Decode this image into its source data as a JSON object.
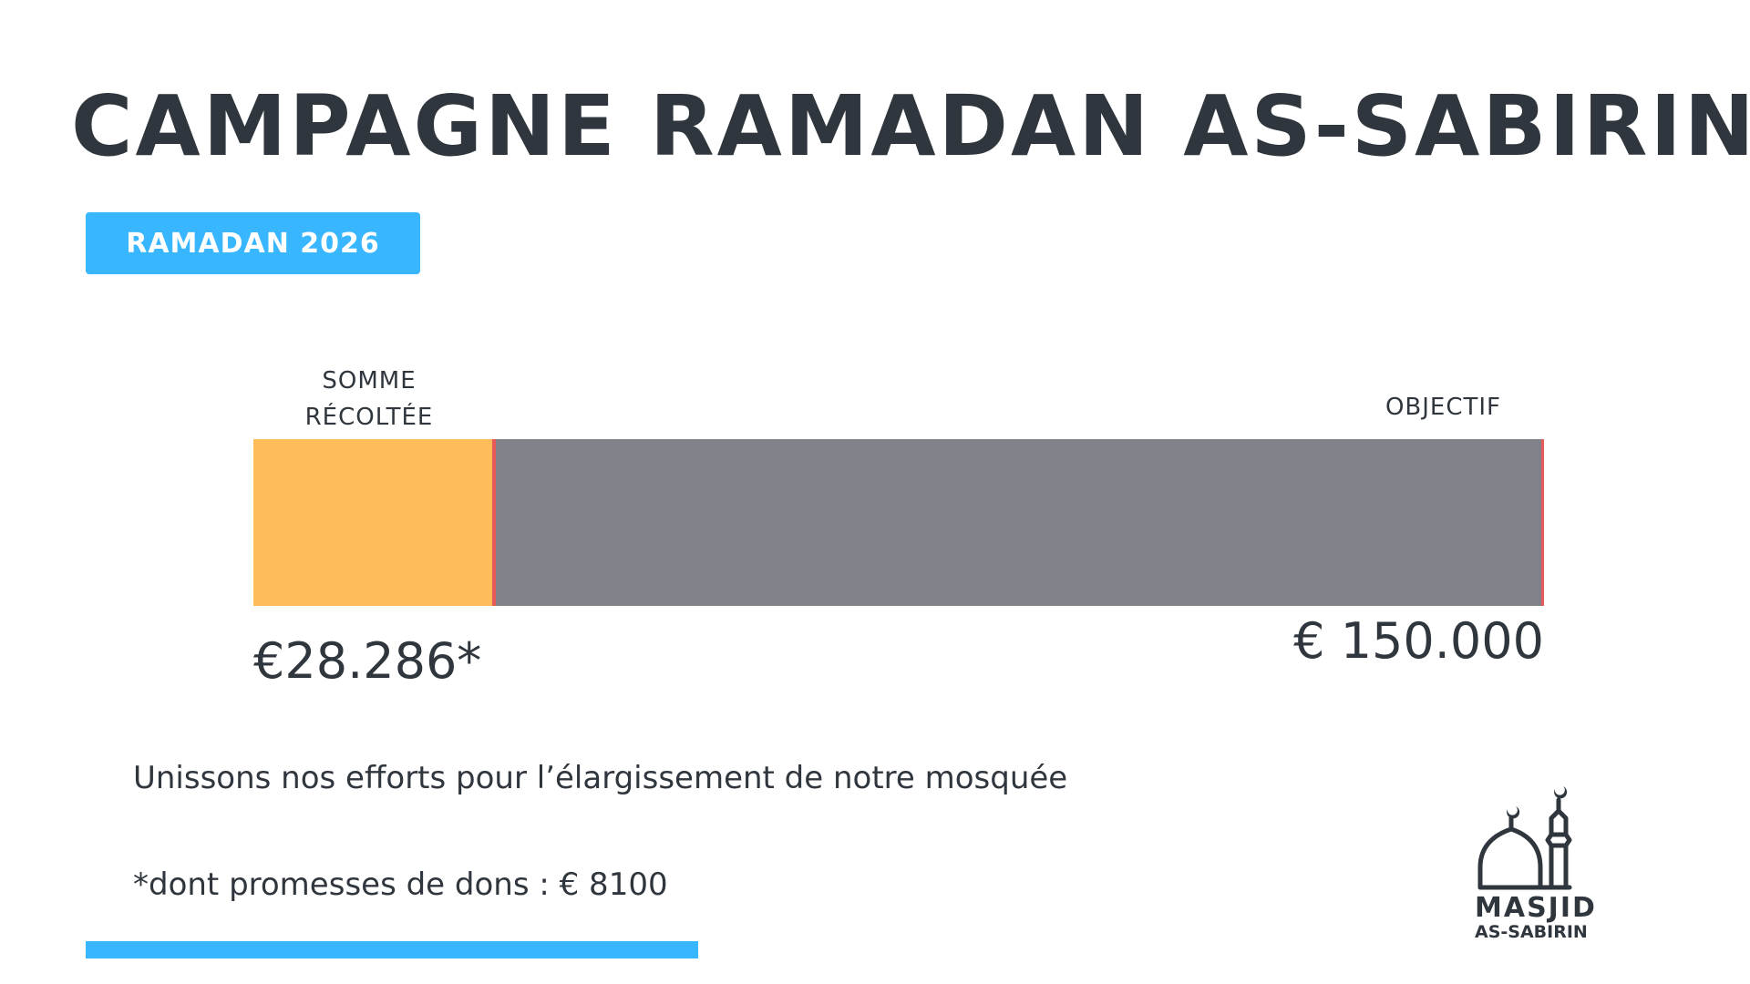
{
  "header": {
    "title": "CAMPAGNE RAMADAN AS-SABIRIN",
    "badge": "RAMADAN 2026"
  },
  "progress": {
    "raised_label_line1": "SOMME",
    "raised_label_line2": "RÉCOLTÉE",
    "goal_label": "OBJECTIF",
    "raised_amount": "€28.286*",
    "goal_amount": "€ 150.000",
    "raised_value": 28286,
    "goal_value": 150000,
    "fill_color": "#ffbd59",
    "track_color": "#7f8289",
    "marker_color": "#e85a5a"
  },
  "footer": {
    "tagline": "Unissons nos efforts pour l’élargissement de notre mosquée",
    "pledges_note": "*dont promesses de dons : € 8100",
    "accent_color": "#38b6ff"
  },
  "logo": {
    "icon": "mosque-icon",
    "name": "MASJID",
    "subtitle": "AS-SABIRIN"
  }
}
